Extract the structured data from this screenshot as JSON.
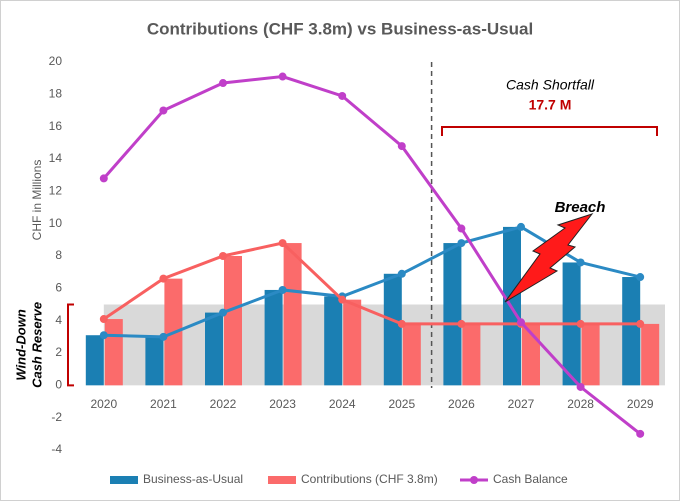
{
  "chart_data": {
    "type": "bar_line",
    "title": "Contributions (CHF 3.8m) vs Business-as-Usual",
    "y_label": "CHF in Millions",
    "categories": [
      "2020",
      "2021",
      "2022",
      "2023",
      "2024",
      "2025",
      "2026",
      "2027",
      "2028",
      "2029"
    ],
    "series": [
      {
        "name": "Business-as-Usual",
        "kind": "bar",
        "line_overlay": true,
        "color": "#1b7fb3",
        "line_color": "#2b8ac4",
        "values": [
          3.1,
          3.0,
          4.5,
          5.9,
          5.5,
          6.9,
          8.8,
          9.8,
          7.6,
          6.7
        ]
      },
      {
        "name": "Contributions (CHF 3.8m)",
        "kind": "bar",
        "line_overlay": true,
        "color": "#fb6b6b",
        "line_color": "#f86060",
        "values": [
          4.1,
          6.6,
          8.0,
          8.8,
          5.3,
          3.8,
          3.8,
          3.8,
          3.8,
          3.8
        ]
      },
      {
        "name": "Cash Balance",
        "kind": "line",
        "color": "#c03fc9",
        "values": [
          12.8,
          17.0,
          18.7,
          19.1,
          17.9,
          14.8,
          9.7,
          3.9,
          -0.1,
          -3.0
        ]
      }
    ],
    "ylim": [
      -4,
      20
    ],
    "yticks": [
      -4,
      -2,
      0,
      2,
      4,
      6,
      8,
      10,
      12,
      14,
      16,
      18,
      20
    ],
    "grid": false,
    "legend": "bottom",
    "reserve": {
      "label_lines": [
        "Wind-Down",
        "Cash Reserve"
      ],
      "range": [
        0,
        5
      ],
      "color": "#d9d9d9"
    },
    "shortfall": {
      "title": "Cash Shortfall",
      "amount": "17.7 M"
    },
    "breach_label": "Breach"
  }
}
